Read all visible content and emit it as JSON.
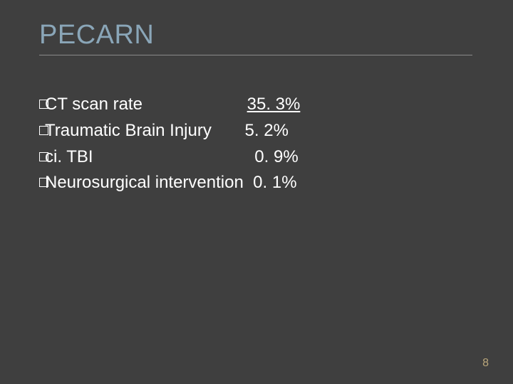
{
  "title": "PECARN",
  "pageNumber": "8",
  "colors": {
    "background": "#3f3f3f",
    "title": "#8aa6b8",
    "text": "#ffffff",
    "divider": "#8a8a8a",
    "pagenum": "#b9a67a"
  },
  "rows": [
    {
      "label": "CT scan rate                      ",
      "value": "35. 3%",
      "underlined": true
    },
    {
      "label": "Traumatic Brain Injury       ",
      "value": "5. 2%",
      "underlined": false
    },
    {
      "label": "ci. TBI                                  ",
      "value": "0. 9%",
      "underlined": false
    },
    {
      "label": "Neurosurgical intervention  ",
      "value": "0. 1%",
      "underlined": false
    }
  ]
}
